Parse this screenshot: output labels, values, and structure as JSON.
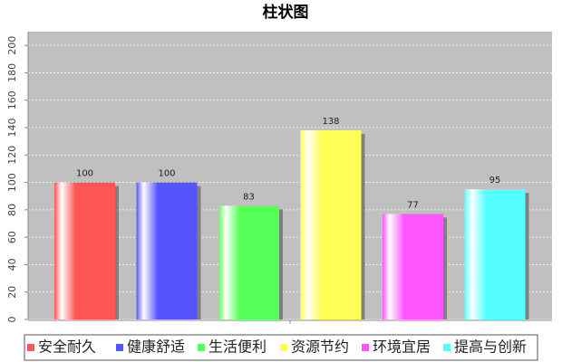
{
  "chart_data": {
    "type": "bar",
    "title": "柱状图",
    "categories": [
      null
    ],
    "series": [
      {
        "name": "安全耐久",
        "color": "#ff5555",
        "values": [
          100
        ]
      },
      {
        "name": "健康舒适",
        "color": "#5555ff",
        "values": [
          100
        ]
      },
      {
        "name": "生活便利",
        "color": "#55ff55",
        "values": [
          83
        ]
      },
      {
        "name": "资源节约",
        "color": "#ffff55",
        "values": [
          138
        ]
      },
      {
        "name": "环境宜居",
        "color": "#ff55ff",
        "values": [
          77
        ]
      },
      {
        "name": "提高与创新",
        "color": "#55ffff",
        "values": [
          95
        ]
      }
    ],
    "ylim": [
      0,
      210
    ],
    "yticks": [
      0,
      20,
      40,
      60,
      80,
      100,
      120,
      140,
      160,
      180,
      200
    ],
    "grid": true,
    "legend": "bottom"
  }
}
